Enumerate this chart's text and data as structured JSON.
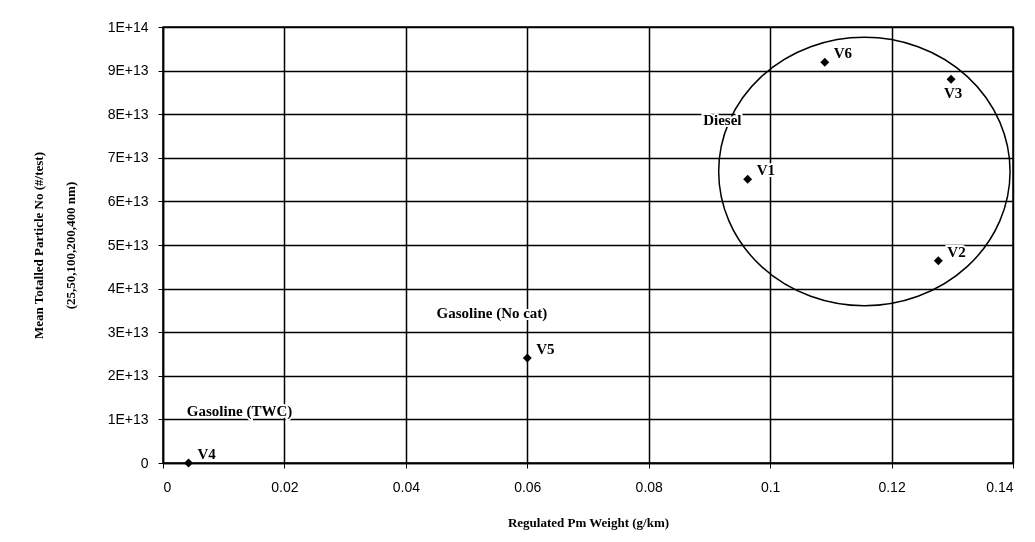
{
  "chart_data": {
    "type": "scatter",
    "xlabel": "Regulated Pm Weight (g/km)",
    "ylabel": "Mean Totalled Particle No (#/test)\n(25,50,100,200,400 nm)",
    "x": [
      0.0963,
      0.1277,
      0.1298,
      0.0042,
      0.06,
      0.109
    ],
    "series": [
      {
        "color": "#000000",
        "values": [
          65100000000000.0,
          46400000000000.0,
          88000000000000.0,
          0,
          24100000000000.0,
          91900000000000.0
        ]
      }
    ],
    "marker": "diamond",
    "grid": true,
    "xlim": [
      0,
      0.14
    ],
    "xticks": [
      0,
      0.02,
      0.04,
      0.06,
      0.08,
      0.1,
      0.12,
      0.14
    ],
    "ylim": [
      0,
      100000000000000.0
    ],
    "yticks": [
      0,
      {
        "value": 10000000000000.0,
        "label": "1E+13"
      },
      {
        "value": 20000000000000.0,
        "label": "2E+13"
      },
      {
        "value": 30000000000000.0,
        "label": "3E+13"
      },
      {
        "value": 40000000000000.0,
        "label": "4E+13"
      },
      {
        "value": 50000000000000.0,
        "label": "5E+13"
      },
      {
        "value": 60000000000000.0,
        "label": "6E+13"
      },
      {
        "value": 70000000000000.0,
        "label": "7E+13"
      },
      {
        "value": 80000000000000.0,
        "label": "8E+13"
      },
      {
        "value": 90000000000000.0,
        "label": "9E+13"
      },
      {
        "value": 100000000000000.0,
        "label": "1E+14"
      }
    ],
    "annotations": [
      {
        "text": "V1",
        "x": 0.0963,
        "y": 65100000000000.0
      },
      {
        "text": "V2",
        "x": 0.1277,
        "y": 46400000000000.0
      },
      {
        "text": "V3",
        "x": 0.1298,
        "y": 88000000000000.0
      },
      {
        "text": "V4",
        "x": 0.0042,
        "y": 0
      },
      {
        "text": "V5",
        "x": 0.06,
        "y": 24100000000000.0
      },
      {
        "text": "V6",
        "x": 0.109,
        "y": 91900000000000.0
      },
      "Diesel",
      "Gasoline (No cat)",
      "Gasoline (TWC)"
    ]
  }
}
